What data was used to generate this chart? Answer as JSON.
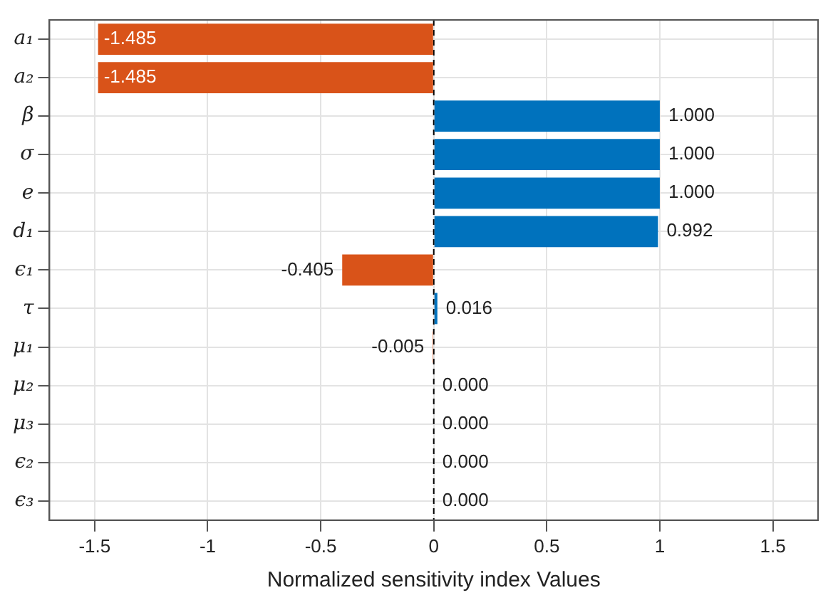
{
  "chart_data": {
    "type": "bar",
    "orientation": "horizontal",
    "xlabel": "Normalized sensitivity index Values",
    "categories": [
      "a₁",
      "a₂",
      "β",
      "σ",
      "e",
      "d₁",
      "ϵ₁",
      "τ",
      "μ₁",
      "μ₂",
      "μ₃",
      "ϵ₂",
      "ϵ₃"
    ],
    "values": [
      -1.485,
      -1.485,
      1.0,
      1.0,
      1.0,
      0.992,
      -0.405,
      0.016,
      -0.005,
      0.0,
      0.0,
      0.0,
      0.0
    ],
    "colors": [
      "#d95319",
      "#d95319",
      "#0072bd",
      "#0072bd",
      "#0072bd",
      "#0072bd",
      "#d95319",
      "#0072bd",
      "#d95319",
      "#0072bd",
      "#0072bd",
      "#0072bd",
      "#0072bd"
    ],
    "value_labels": [
      "-1.485",
      "-1.485",
      "1.000",
      "1.000",
      "1.000",
      "0.992",
      "-0.405",
      "0.016",
      "-0.005",
      "0.000",
      "0.000",
      "0.000",
      "0.000"
    ],
    "xlim": [
      -1.7,
      1.7
    ],
    "xticks": [
      -1.5,
      -1,
      -0.5,
      0,
      0.5,
      1,
      1.5
    ],
    "grid": true,
    "legend": false,
    "ref_lines": [
      {
        "axis": "x",
        "value": 0,
        "color": "#000000",
        "line_style": "dashed"
      }
    ]
  }
}
